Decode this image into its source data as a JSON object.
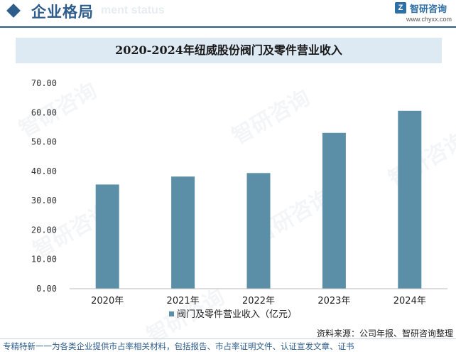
{
  "header": {
    "title": "企业格局",
    "ghost_text": "ment status",
    "brand_name": "智研咨询",
    "brand_url": "www.chyxx.com"
  },
  "watermark_text": "智研咨询",
  "chart_data": {
    "type": "bar",
    "title": "2020-2024年纽威股份阀门及零件营业收入",
    "categories": [
      "2020年",
      "2021年",
      "2022年",
      "2023年",
      "2024年"
    ],
    "series": [
      {
        "name": "阀门及零件营业收入（亿元）",
        "values": [
          35.5,
          38.2,
          39.4,
          53.1,
          60.6
        ]
      }
    ],
    "ylim": [
      0,
      70
    ],
    "yticks": [
      "0.00",
      "10.00",
      "20.00",
      "30.00",
      "40.00",
      "50.00",
      "60.00",
      "70.00"
    ],
    "legend_position": "bottom",
    "grid": false,
    "bar_color": "#5b8fa8"
  },
  "footer": {
    "source": "资料来源：公司年报、智研咨询整理",
    "note": "专精特新一一为各类企业提供市占率相关材料，包括报告、市占率证明文件、认证宣发文章、证书"
  }
}
